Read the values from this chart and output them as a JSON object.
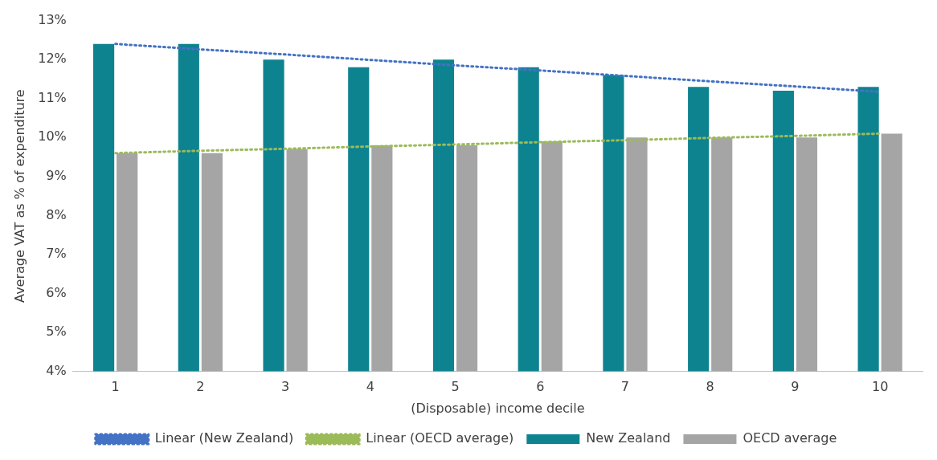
{
  "chart_data": {
    "type": "bar",
    "xlabel": "(Disposable) income decile",
    "ylabel": "Average VAT as % of expenditure",
    "categories": [
      "1",
      "2",
      "3",
      "4",
      "5",
      "6",
      "7",
      "8",
      "9",
      "10"
    ],
    "series": [
      {
        "name": "New Zealand",
        "color": "#0e8390",
        "values": [
          12.4,
          12.4,
          12.0,
          11.8,
          12.0,
          11.8,
          11.6,
          11.3,
          11.2,
          11.3
        ]
      },
      {
        "name": "OECD average",
        "color": "#a5a5a5",
        "values": [
          9.6,
          9.6,
          9.7,
          9.8,
          9.8,
          9.9,
          10.0,
          10.0,
          10.0,
          10.1
        ]
      },
      {
        "name": "Linear (New Zealand)",
        "type": "line",
        "line_style": "dotted",
        "color": "#4472c4",
        "values": [
          12.4,
          12.26,
          12.13,
          11.99,
          11.85,
          11.72,
          11.58,
          11.44,
          11.31,
          11.17
        ]
      },
      {
        "name": "Linear (OECD average)",
        "type": "line",
        "line_style": "dotted",
        "color": "#9bbb59",
        "values": [
          9.6,
          9.66,
          9.71,
          9.77,
          9.82,
          9.88,
          9.93,
          9.99,
          10.04,
          10.1
        ]
      }
    ],
    "ylim": [
      4,
      13
    ],
    "yticks": [
      {
        "value": 4,
        "label": "4%"
      },
      {
        "value": 5,
        "label": "5%"
      },
      {
        "value": 6,
        "label": "6%"
      },
      {
        "value": 7,
        "label": "7%"
      },
      {
        "value": 8,
        "label": "8%"
      },
      {
        "value": 9,
        "label": "9%"
      },
      {
        "value": 10,
        "label": "10%"
      },
      {
        "value": 11,
        "label": "11%"
      },
      {
        "value": 12,
        "label": "12%"
      },
      {
        "value": 13,
        "label": "13%"
      }
    ],
    "grid": false,
    "legend": "bottom",
    "marker": "none"
  }
}
